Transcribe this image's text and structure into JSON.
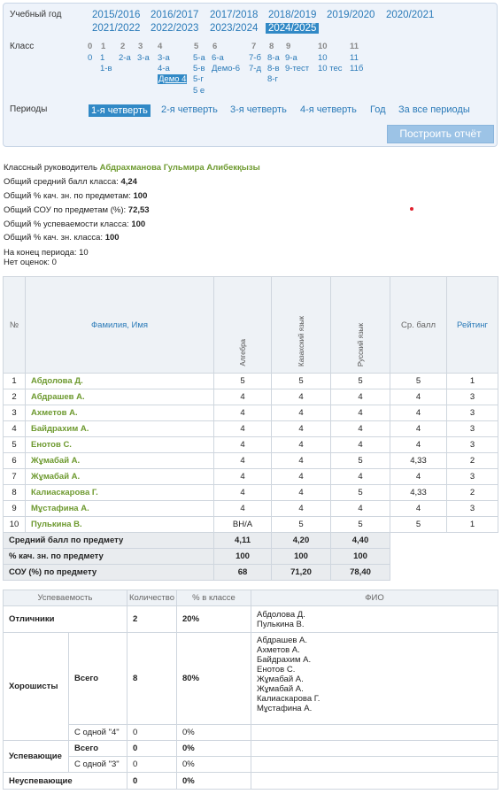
{
  "filter": {
    "year_label": "Учебный год",
    "years": [
      "2015/2016",
      "2016/2017",
      "2017/2018",
      "2018/2019",
      "2019/2020",
      "2020/2021",
      "2021/2022",
      "2022/2023",
      "2023/2024",
      "2024/2025"
    ],
    "class_label": "Класс",
    "class_grades": [
      "0",
      "1",
      "2",
      "3",
      "4",
      "5",
      "6",
      "7",
      "8",
      "9",
      "10",
      "11"
    ],
    "classes": {
      "g0": [
        "0"
      ],
      "g1": [
        "1",
        "1-в"
      ],
      "g2": [
        "2-а"
      ],
      "g3": [
        "3-а"
      ],
      "g4": [
        "3-а",
        "4-а",
        "Демо 4"
      ],
      "g5": [
        "5-а",
        "5-в",
        "5-г",
        "5 е"
      ],
      "g6": [
        "6-а",
        "Демо-6"
      ],
      "g7": [
        "7-б",
        "7-д"
      ],
      "g8": [
        "8-а",
        "8-в",
        "8-г"
      ],
      "g9": [
        "9-а",
        "9-тест"
      ],
      "g10": [
        "10",
        "10 тес"
      ],
      "g11": [
        "11",
        "11б"
      ]
    },
    "periods_label": "Периоды",
    "periods": [
      "1-я четверть",
      "2-я четверть",
      "3-я четверть",
      "4-я четверть",
      "Год",
      "За все периоды"
    ],
    "build_button": "Построить отчёт"
  },
  "info": {
    "teacher_label": "Классный руководитель",
    "teacher": "Абдрахманова Гульмира Алибекқызы",
    "lines": [
      {
        "label": "Общий средний балл класса:",
        "value": "4,24"
      },
      {
        "label": "Общий % кач. зн. по предметам:",
        "value": "100"
      },
      {
        "label": "Общий СОУ по предметам (%):",
        "value": "72,53"
      },
      {
        "label": "Общий % успеваемости класса:",
        "value": "100"
      },
      {
        "label": "Общий % кач. зн. класса:",
        "value": "100"
      }
    ],
    "end_period": "На конец периода: 10",
    "no_grades": "Нет оценок: 0"
  },
  "grades_table": {
    "headers": {
      "num": "№",
      "name": "Фамилия, Имя",
      "subjects": [
        "Алгебра",
        "Казахский язык",
        "Русский язык"
      ],
      "avg": "Ср. балл",
      "rating": "Рейтинг"
    },
    "rows": [
      [
        "1",
        "Абдолова Д.",
        "5",
        "5",
        "5",
        "5",
        "1"
      ],
      [
        "2",
        "Абдрашев А.",
        "4",
        "4",
        "4",
        "4",
        "3"
      ],
      [
        "3",
        "Ахметов А.",
        "4",
        "4",
        "4",
        "4",
        "3"
      ],
      [
        "4",
        "Байдрахим А.",
        "4",
        "4",
        "4",
        "4",
        "3"
      ],
      [
        "5",
        "Енотов С.",
        "4",
        "4",
        "4",
        "4",
        "3"
      ],
      [
        "6",
        "Жұмабай А.",
        "4",
        "4",
        "5",
        "4,33",
        "2"
      ],
      [
        "7",
        "Жұмабай А.",
        "4",
        "4",
        "4",
        "4",
        "3"
      ],
      [
        "8",
        "Калиаскарова Г.",
        "4",
        "4",
        "5",
        "4,33",
        "2"
      ],
      [
        "9",
        "Мұстафина А.",
        "4",
        "4",
        "4",
        "4",
        "3"
      ],
      [
        "10",
        "Пулькина В.",
        "ВН/А",
        "5",
        "5",
        "5",
        "1"
      ]
    ],
    "summary": [
      [
        "Средний балл по предмету",
        "4,11",
        "4,20",
        "4,40"
      ],
      [
        "% кач. зн. по предмету",
        "100",
        "100",
        "100"
      ],
      [
        "СОУ (%) по предмету",
        "68",
        "71,20",
        "78,40"
      ]
    ]
  },
  "perf_table": {
    "headers": [
      "Успеваемость",
      "Количество",
      "% в классе",
      "ФИО"
    ],
    "excellent": {
      "label": "Отличники",
      "count": "2",
      "pct": "20%",
      "fio": [
        "Абдолова Д.",
        "Пулькина В."
      ]
    },
    "good": {
      "label": "Хорошисты",
      "all_label": "Всего",
      "all_count": "8",
      "all_pct": "80%",
      "fio": [
        "Абдрашев А.",
        "Ахметов А.",
        "Байдрахим А.",
        "Енотов С.",
        "Жұмабай А.",
        "Жұмабай А.",
        "Калиаскарова Г.",
        "Мұстафина А."
      ],
      "one4_label": "С одной \"4\"",
      "one4_count": "0",
      "one4_pct": "0%"
    },
    "passing": {
      "label": "Успевающие",
      "all_label": "Всего",
      "all_count": "0",
      "all_pct": "0%",
      "one3_label": "С одной \"3\"",
      "one3_count": "0",
      "one3_pct": "0%"
    },
    "failing": {
      "label": "Неуспевающие",
      "count": "0",
      "pct": "0%"
    }
  }
}
